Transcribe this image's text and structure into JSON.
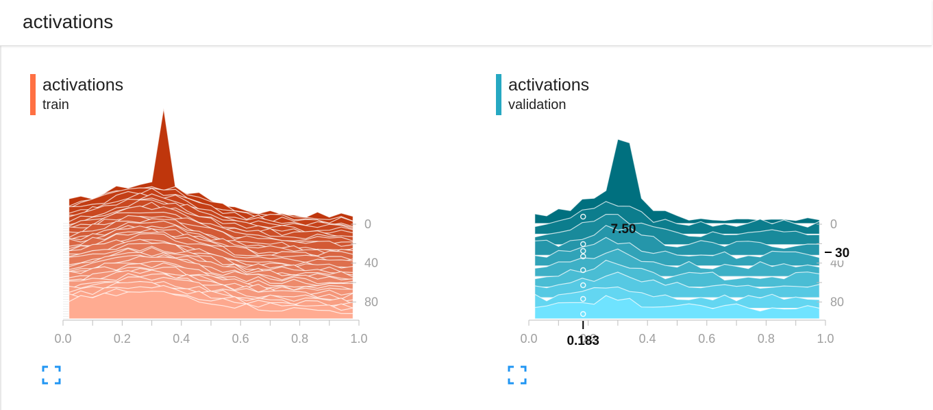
{
  "header": {
    "title": "activations"
  },
  "charts": [
    {
      "title": "activations",
      "subtitle": "train",
      "color": "#ff7043",
      "color_dark": "#bf360c",
      "color_light": "#ffab91"
    },
    {
      "title": "activations",
      "subtitle": "validation",
      "color": "#26a8c2",
      "color_dark": "#00707f",
      "color_light": "#6fe3ff",
      "hover": {
        "x_value": "0.183",
        "y_value": "7.50",
        "step_value": "30"
      }
    }
  ],
  "chart_data": [
    {
      "type": "area",
      "style": "histogram-offset",
      "xlim": [
        0.0,
        1.0
      ],
      "x_ticks": [
        "0.0",
        "0.2",
        "0.4",
        "0.6",
        "0.8",
        "1.0"
      ],
      "step_ticks": [
        "0",
        "40",
        "80"
      ],
      "step_range": [
        0,
        98
      ],
      "series_count": 40,
      "peak_x": 0.34
    },
    {
      "type": "area",
      "style": "histogram-offset",
      "xlim": [
        0.0,
        1.0
      ],
      "x_ticks": [
        "0.0",
        "0.2",
        "0.4",
        "0.6",
        "0.8",
        "1.0"
      ],
      "step_ticks": [
        "0",
        "40",
        "80"
      ],
      "step_range": [
        0,
        98
      ],
      "series_count": 10,
      "peak_x": 0.32
    }
  ],
  "icons": {
    "fullscreen": "fullscreen-icon"
  }
}
